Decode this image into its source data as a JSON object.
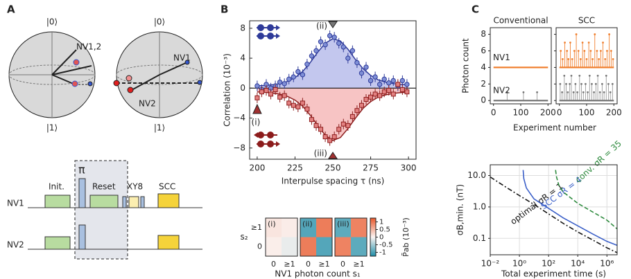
{
  "panel_labels": [
    "A",
    "B",
    "C"
  ],
  "diagram": {
    "ket0": "|0⟩",
    "ket1": "|1⟩",
    "sphere1_label": "NV1,2",
    "sphere2_labels": [
      "NV1",
      "NV2"
    ],
    "pulses": [
      "Init.",
      "π",
      "Reset",
      "XY8",
      "SCC"
    ],
    "rows": [
      "NV1",
      "NV2"
    ]
  },
  "chart_data": [
    {
      "type": "errorbar",
      "xlabel": "Interpulse spacing τ (ns)",
      "ylabel": "Correlation (10⁻³)",
      "xlim": [
        195,
        305
      ],
      "ylim": [
        -9.5,
        9
      ],
      "xticks": [
        200,
        225,
        250,
        275,
        300
      ],
      "yticks": [
        8,
        4,
        0,
        {
          "value": -4,
          "label": "−4"
        },
        {
          "value": -8,
          "label": "−8"
        }
      ],
      "annotations": [
        "(ii)",
        "(i)",
        "(iii)"
      ],
      "x": [
        200,
        203,
        206,
        209,
        212,
        215,
        218,
        221,
        224,
        227,
        230,
        233,
        236,
        239,
        242,
        245,
        248,
        251,
        254,
        257,
        260,
        263,
        266,
        269,
        272,
        275,
        278,
        281,
        284,
        287,
        290,
        293,
        296,
        299
      ],
      "fit_x": [
        200,
        205,
        210,
        215,
        220,
        225,
        230,
        235,
        240,
        245,
        250,
        255,
        260,
        265,
        270,
        275,
        280,
        285,
        290,
        295,
        300
      ],
      "series": [
        {
          "color": "#2e3a99",
          "point_fill": "#7f8fd6",
          "fill_color": "#c3c7ee",
          "marker": "circle",
          "values": [
            0.3,
            -0.2,
            0.5,
            0,
            0.3,
            0.8,
            0.6,
            1.2,
            1.5,
            2.2,
            1.8,
            3.2,
            4.3,
            5.0,
            6.2,
            5.8,
            7.0,
            6.8,
            6.0,
            5.5,
            4.0,
            5.0,
            3.4,
            2.0,
            2.8,
            1.0,
            1.5,
            0.5,
            1.2,
            0.7,
            1.0,
            0.3,
            1.0,
            0.5
          ],
          "errors": [
            0.7,
            0.7,
            0.7,
            0.7,
            0.7,
            0.7,
            0.7,
            0.7,
            0.7,
            0.7,
            0.7,
            0.7,
            0.7,
            0.7,
            0.7,
            0.7,
            0.7,
            0.7,
            0.7,
            0.7,
            0.7,
            0.7,
            0.7,
            0.7,
            0.7,
            0.7,
            0.7,
            0.7,
            0.7,
            0.7,
            0.7,
            0.7,
            0.7,
            0.7
          ],
          "fit": [
            0.3,
            0.35,
            0.45,
            0.6,
            0.9,
            1.4,
            2.2,
            3.4,
            4.8,
            6.0,
            6.6,
            6.3,
            5.2,
            3.8,
            2.6,
            1.7,
            1.1,
            0.8,
            0.6,
            0.5,
            0.45
          ]
        },
        {
          "color": "#8c1c1c",
          "point_fill": "#e28080",
          "fill_color": "#f7c4c4",
          "marker": "square",
          "values": [
            -1.3,
            -0.5,
            -0.3,
            -0.8,
            -0.2,
            -1.2,
            -1.0,
            -2.0,
            -2.3,
            -2.5,
            -2.0,
            -2.8,
            -4.2,
            -5.0,
            -5.5,
            -6.5,
            -7.0,
            -6.5,
            -5.5,
            -4.8,
            -5.0,
            -3.8,
            -3.0,
            -2.3,
            -1.5,
            -1.2,
            -0.8,
            -1.0,
            -0.5,
            -0.3,
            -0.8,
            0.5,
            -0.2,
            -0.5
          ],
          "errors": [
            0.7,
            0.7,
            0.7,
            0.7,
            0.7,
            0.7,
            0.7,
            0.7,
            0.7,
            0.7,
            0.7,
            0.7,
            0.7,
            0.7,
            0.7,
            0.7,
            0.7,
            0.7,
            0.7,
            0.7,
            0.7,
            0.7,
            0.7,
            0.7,
            0.7,
            0.7,
            0.7,
            0.7,
            0.7,
            0.7,
            0.7,
            0.7,
            0.7,
            0.7
          ],
          "fit": [
            -0.5,
            -0.55,
            -0.65,
            -0.8,
            -1.1,
            -1.6,
            -2.4,
            -3.6,
            -5.0,
            -6.3,
            -7.0,
            -6.6,
            -5.4,
            -4.0,
            -2.7,
            -1.8,
            -1.2,
            -0.9,
            -0.7,
            -0.6,
            -0.55
          ]
        }
      ]
    },
    {
      "type": "heatmap",
      "xlabel": "NV1 photon count s₁",
      "ylabel": "s₂",
      "colorbar_label": "P̃ab (10⁻³)",
      "xcategories": [
        "0",
        "≥1"
      ],
      "ycategories": [
        "≥1",
        "0"
      ],
      "clim": [
        -1.25,
        1.25
      ],
      "colormap": [
        "#1f8ea8",
        "#fbf4f2",
        "#e9572a"
      ],
      "cticks": [
        1.0,
        0.5,
        0.0,
        -0.5,
        -1.0
      ],
      "panels": [
        {
          "label": "(i)",
          "values": [
            [
              0.12,
              0.06
            ],
            [
              0.05,
              -0.1
            ]
          ]
        },
        {
          "label": "(ii)",
          "values": [
            [
              -0.95,
              0.95
            ],
            [
              0.95,
              -0.95
            ]
          ]
        },
        {
          "label": "(iii)",
          "values": [
            [
              -0.9,
              0.9
            ],
            [
              0.9,
              -0.9
            ]
          ]
        }
      ]
    },
    {
      "type": "stem",
      "xlabel": "Experiment number",
      "ylabel": "Photon count",
      "xlim": [
        -12,
        212
      ],
      "ylim": [
        -0.4,
        8.8
      ],
      "xticks": [
        0,
        100,
        200
      ],
      "yticks": [
        0,
        2,
        4,
        6,
        8
      ],
      "panels": [
        {
          "title": "Conventional",
          "series": [
            {
              "name": "NV1",
              "color": "#f07f2e",
              "baseline": 4,
              "x": [],
              "values": []
            },
            {
              "name": "NV2",
              "color": "#777777",
              "baseline": 0,
              "x": [
                50,
                110,
                160
              ],
              "values": [
                1,
                1,
                1
              ]
            }
          ]
        },
        {
          "title": "SCC",
          "series": [
            {
              "name": "NV1",
              "color": "#f07f2e",
              "baseline": 4,
              "x": [
                5,
                12,
                20,
                28,
                33,
                40,
                47,
                55,
                62,
                70,
                78,
                85,
                92,
                100,
                108,
                115,
                122,
                130,
                138,
                145,
                152,
                160,
                168,
                175,
                183,
                190,
                197
              ],
              "values": [
                6,
                5,
                7,
                6,
                5,
                7,
                5,
                6,
                8,
                6,
                5,
                7,
                6,
                5,
                7,
                6,
                5,
                8,
                6,
                5,
                6,
                7,
                5,
                6,
                8,
                6,
                5
              ]
            },
            {
              "name": "NV2",
              "color": "#777777",
              "baseline": 0,
              "x": [
                3,
                10,
                18,
                25,
                31,
                38,
                44,
                52,
                59,
                66,
                74,
                81,
                88,
                96,
                104,
                111,
                119,
                127,
                134,
                141,
                149,
                157,
                164,
                172,
                180,
                187,
                195
              ],
              "values": [
                2,
                1,
                3,
                2,
                1,
                2,
                3,
                1,
                2,
                1,
                3,
                2,
                1,
                2,
                1,
                3,
                2,
                1,
                2,
                3,
                1,
                2,
                1,
                3,
                2,
                1,
                2
              ]
            }
          ]
        }
      ]
    },
    {
      "type": "line",
      "xlabel": "Total experiment time (s)",
      "ylabel": "σB,min. (nT)",
      "xlog": true,
      "ylog": true,
      "grid": true,
      "xlim": [
        0.01,
        5000000
      ],
      "ylim": [
        0.03,
        22
      ],
      "xticks": [
        {
          "value": 0.01,
          "label": "10⁻²"
        },
        {
          "value": 1,
          "label": "10⁰"
        },
        {
          "value": 100,
          "label": "10²"
        },
        {
          "value": 10000,
          "label": "10⁴"
        },
        {
          "value": 1000000,
          "label": "10⁶"
        }
      ],
      "yticks": [
        0.1,
        {
          "value": 1,
          "label": "1.0"
        },
        {
          "value": 10,
          "label": "10.0"
        }
      ],
      "series": [
        {
          "name": "optimal σR = 1",
          "color": "#111111",
          "dash": "dashdot",
          "x": [
            0.01,
            0.1,
            1,
            10,
            100,
            1000,
            10000,
            100000,
            1000000,
            5000000
          ],
          "values": [
            9,
            4.5,
            2.3,
            1.2,
            0.6,
            0.3,
            0.16,
            0.09,
            0.05,
            0.035
          ]
        },
        {
          "name": "SCC σR = 4",
          "color": "#3a5fc8",
          "dash": "solid",
          "x": [
            1.8,
            2,
            3,
            10,
            100,
            1000,
            10000,
            100000,
            1000000,
            5000000
          ],
          "values": [
            15,
            8,
            4,
            1.8,
            0.9,
            0.45,
            0.25,
            0.14,
            0.08,
            0.06
          ]
        },
        {
          "name": "conv. σR = 35",
          "color": "#2e8b3e",
          "dash": "dashed",
          "x": [
            300,
            350,
            500,
            1000,
            10000,
            100000,
            1000000,
            5000000
          ],
          "values": [
            15,
            9,
            5,
            3,
            1.3,
            0.7,
            0.38,
            0.2
          ]
        }
      ]
    }
  ]
}
